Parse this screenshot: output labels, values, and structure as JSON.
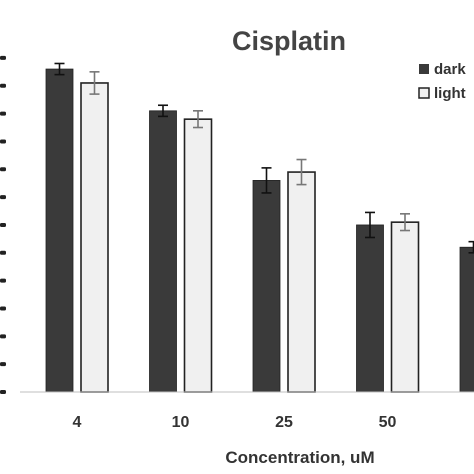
{
  "chart_data": {
    "type": "bar",
    "title": "Cisplatin",
    "xlabel": "Concentration, uM",
    "ylabel": "",
    "categories": [
      "4",
      "10",
      "25",
      "50",
      ""
    ],
    "ylim": [
      0,
      125
    ],
    "grid": false,
    "legend_position": "top-right",
    "series": [
      {
        "name": "dark",
        "values": [
          116,
          101,
          76,
          60,
          52
        ],
        "errors": [
          2,
          2,
          4.5,
          4.5,
          2
        ],
        "color": "#3a3a3a"
      },
      {
        "name": "light",
        "values": [
          111,
          98,
          79,
          61,
          null
        ],
        "errors": [
          4,
          3,
          4.5,
          3,
          null
        ],
        "color": "#f0f0f0"
      }
    ]
  }
}
